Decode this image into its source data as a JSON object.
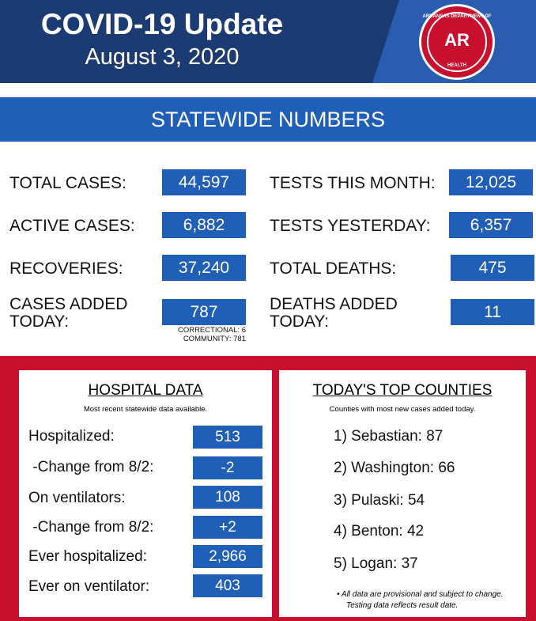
{
  "header": {
    "title": "COVID-19 Update",
    "date": "August 3, 2020",
    "logo": {
      "text": "AR",
      "ring_top": "ARKANSAS DEPARTMENT OF",
      "ring_bottom": "HEALTH"
    }
  },
  "statewide": {
    "heading": "STATEWIDE NUMBERS",
    "left": [
      {
        "label": "TOTAL CASES:",
        "value": "44,597"
      },
      {
        "label": "ACTIVE CASES:",
        "value": "6,882"
      },
      {
        "label": "RECOVERIES:",
        "value": "37,240"
      },
      {
        "label_line1": "CASES ADDED",
        "label_line2": "TODAY:",
        "value": "787",
        "note_line1": "CORRECTIONAL: 6",
        "note_line2": "COMMUNITY: 781"
      }
    ],
    "right": [
      {
        "label": "TESTS THIS MONTH:",
        "value": "12,025"
      },
      {
        "label": "TESTS YESTERDAY:",
        "value": "6,357"
      },
      {
        "label": "TOTAL DEATHS:",
        "value": "475"
      },
      {
        "label_line1": "DEATHS ADDED",
        "label_line2": "TODAY:",
        "value": "11"
      }
    ]
  },
  "hospital": {
    "title": "HOSPITAL DATA",
    "subtitle": "Most recent statewide data available.",
    "rows": [
      {
        "label": "Hospitalized:",
        "value": "513"
      },
      {
        "label": " -Change from 8/2:",
        "value": "-2"
      },
      {
        "label": "On ventilators:",
        "value": "108"
      },
      {
        "label": " -Change from 8/2:",
        "value": "+2"
      },
      {
        "label": "Ever hospitalized:",
        "value": "2,966"
      },
      {
        "label": "Ever on ventilator:",
        "value": "403"
      }
    ]
  },
  "counties": {
    "title": "TODAY'S TOP COUNTIES",
    "subtitle": "Counties with most new cases added today.",
    "items": [
      "1) Sebastian: 87",
      "2) Washington: 66",
      "3) Pulaski: 54",
      "4) Benton: 42",
      "5) Logan: 37"
    ],
    "footnote_line1": "• All data are provisional and subject to change.",
    "footnote_line2": "Testing data reflects result date."
  },
  "colors": {
    "navy": "#1d3b73",
    "blue": "#1f5fb8",
    "red": "#c8102e"
  }
}
